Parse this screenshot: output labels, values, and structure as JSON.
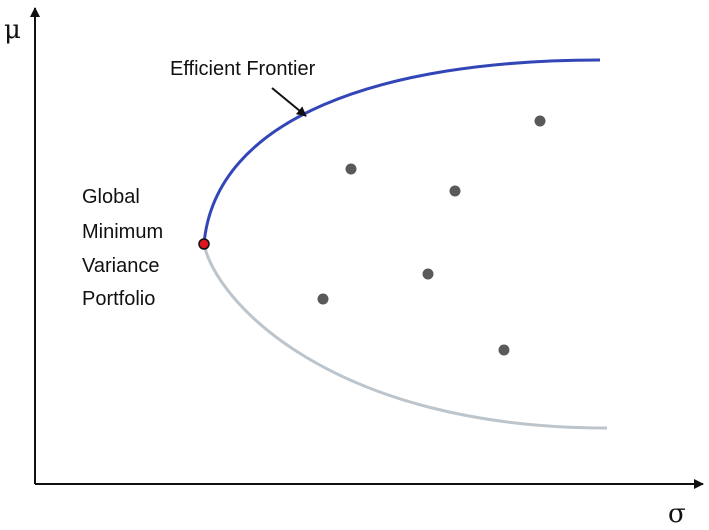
{
  "labels": {
    "y_axis_symbol": "μ",
    "x_axis_symbol": "σ",
    "frontier": "Efficient Frontier",
    "gmv_lines": [
      "Global",
      "Minimum",
      "Variance",
      "Portfolio"
    ]
  },
  "colors": {
    "efficient_frontier": "#3346b8",
    "inefficient_branch": "#bcc4cc",
    "gmv_point": "#e0141e",
    "asset_points": "#5a5a5a",
    "axes": "#111111"
  },
  "assets_count": 6
}
